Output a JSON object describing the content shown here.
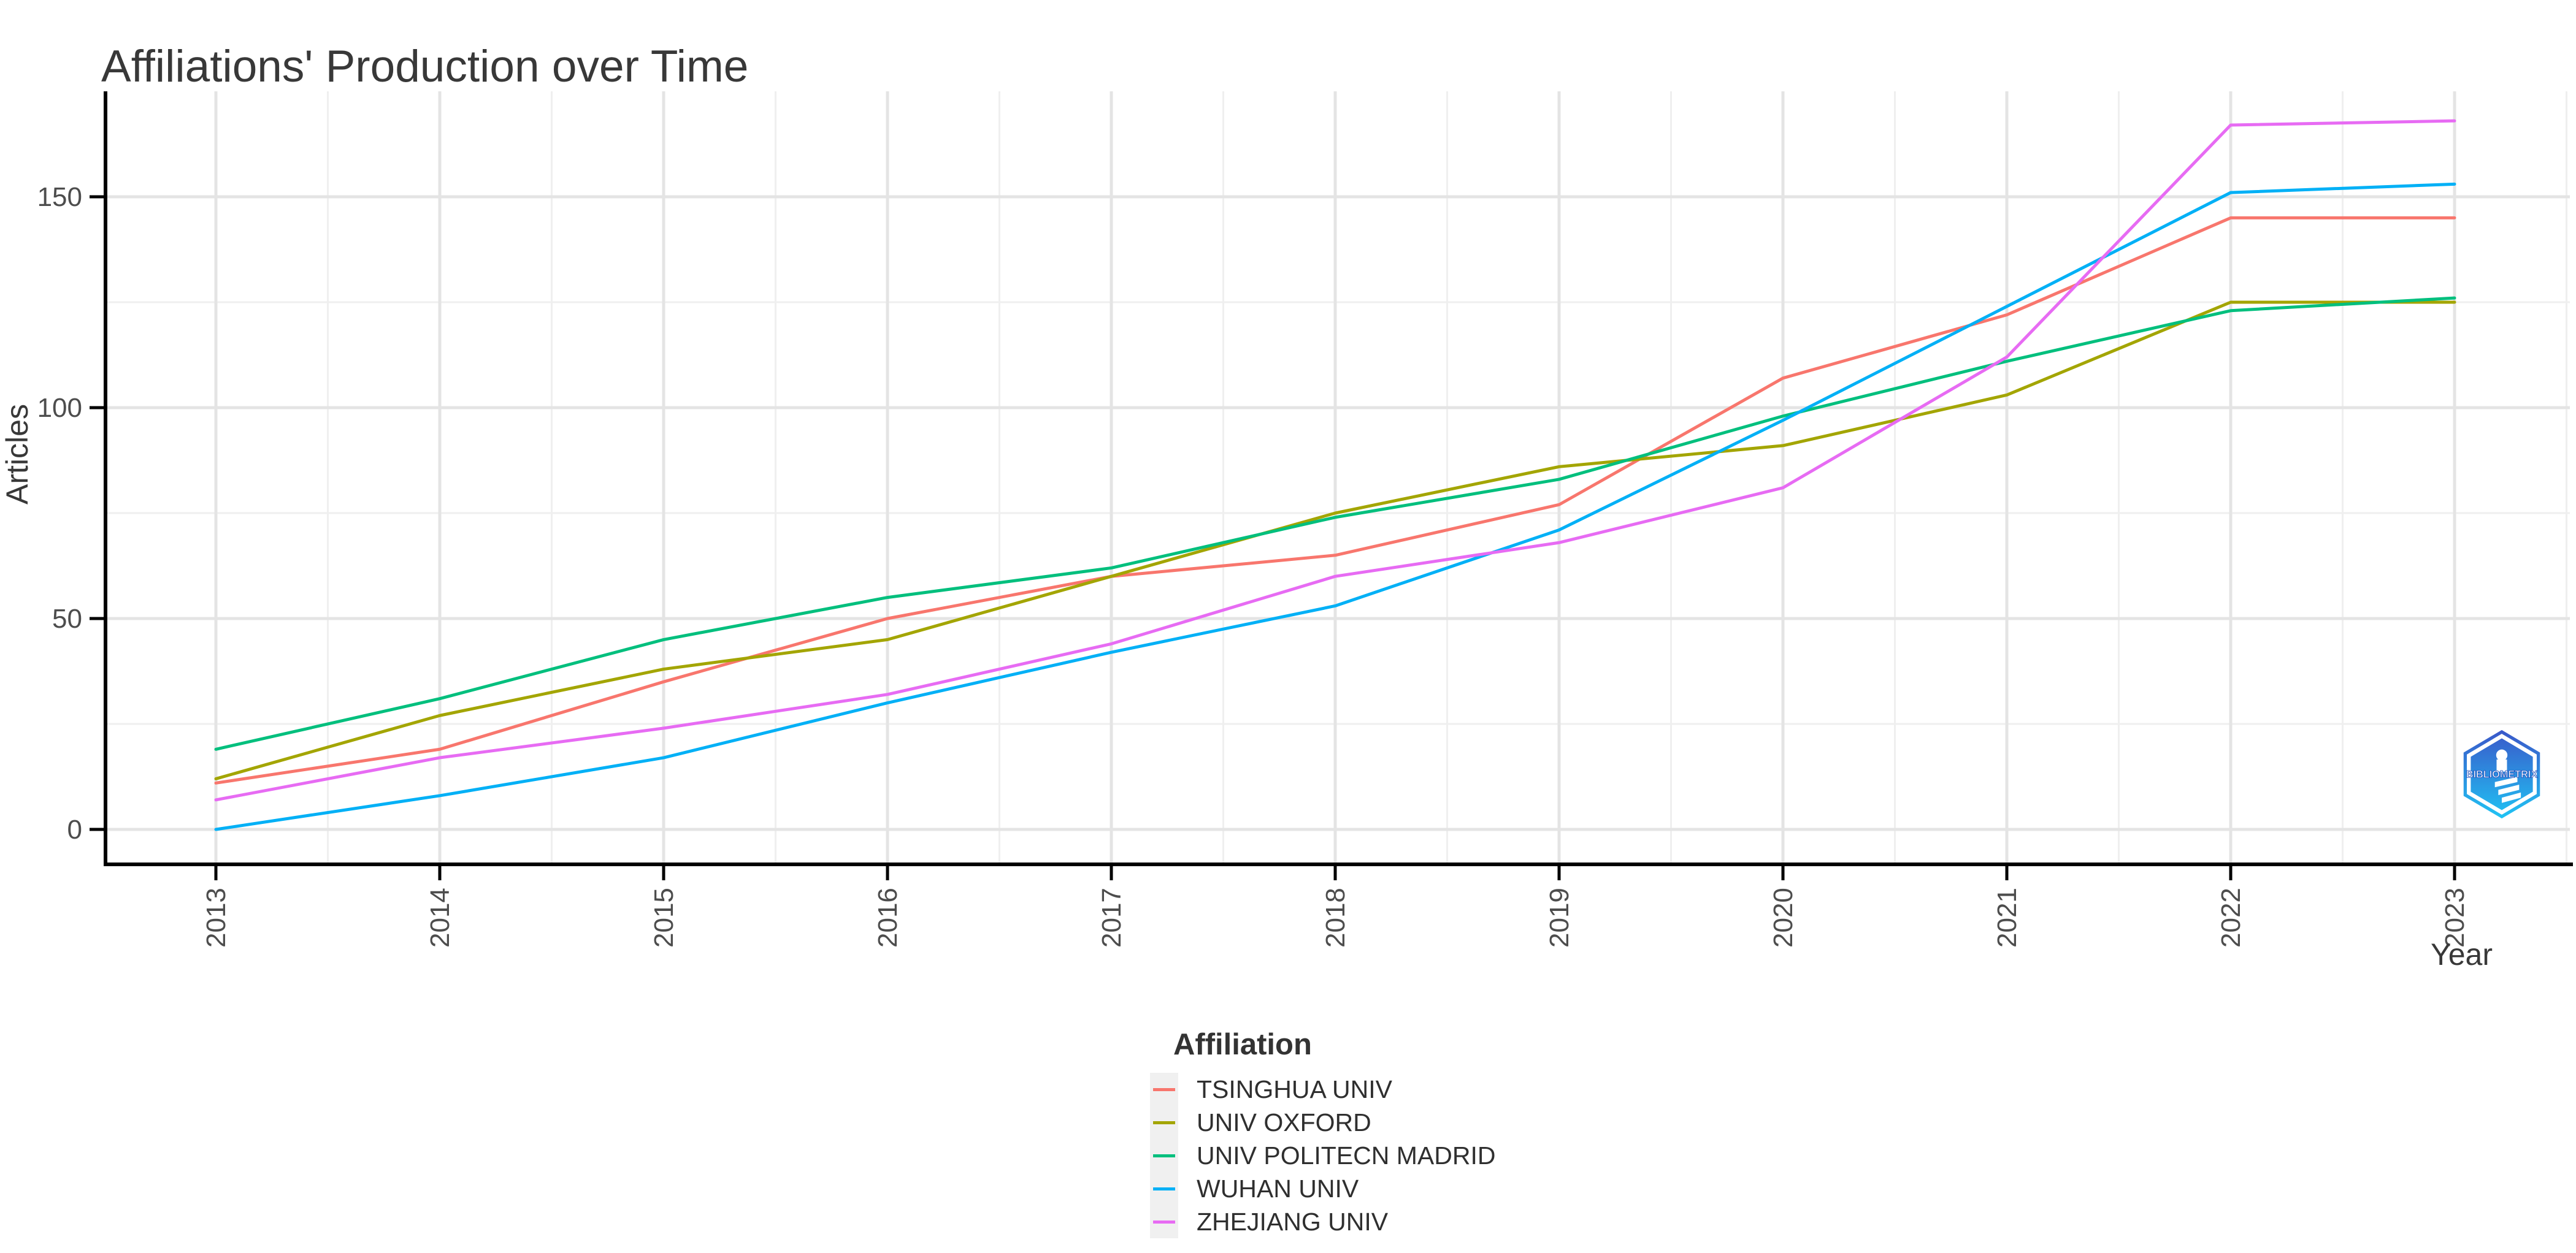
{
  "title": "Affiliations' Production over Time",
  "axes": {
    "x_label": "Year",
    "y_label": "Articles",
    "x_ticks": [
      "2013",
      "2014",
      "2015",
      "2016",
      "2017",
      "2018",
      "2019",
      "2020",
      "2021",
      "2022",
      "2023"
    ],
    "y_ticks": [
      "0",
      "50",
      "100",
      "150"
    ]
  },
  "legend": {
    "title": "Affiliation",
    "entries": [
      "TSINGHUA UNIV",
      "UNIV OXFORD",
      "UNIV POLITECN MADRID",
      "WUHAN UNIV",
      "ZHEJIANG UNIV"
    ]
  },
  "logo": {
    "text": "BIBLIOMETRIX"
  },
  "style_colors": {
    "axis_line": "#000000",
    "grid_major": "#E4E4E4",
    "grid_minor": "#EFEFEF",
    "tick_label": "#4D4D4D",
    "title_text": "#383838",
    "logo_top": "#3A57C9",
    "logo_bottom": "#20C4F4"
  },
  "chart_data": {
    "type": "line",
    "title": "Affiliations' Production over Time",
    "xlabel": "Year",
    "ylabel": "Articles",
    "x": [
      2013,
      2014,
      2015,
      2016,
      2017,
      2018,
      2019,
      2020,
      2021,
      2022,
      2023
    ],
    "ylim": [
      0,
      170
    ],
    "y_major_ticks": [
      0,
      50,
      100,
      150
    ],
    "y_minor_step": 25,
    "grid": true,
    "legend_title": "Affiliation",
    "legend_position": "bottom",
    "series": [
      {
        "name": "TSINGHUA UNIV",
        "color": "#F8766D",
        "values": [
          11,
          19,
          35,
          50,
          60,
          65,
          77,
          107,
          122,
          145,
          145
        ]
      },
      {
        "name": "UNIV OXFORD",
        "color": "#A3A500",
        "values": [
          12,
          27,
          38,
          45,
          60,
          75,
          86,
          91,
          103,
          125,
          125
        ]
      },
      {
        "name": "UNIV POLITECN MADRID",
        "color": "#00BF7D",
        "values": [
          19,
          31,
          45,
          55,
          62,
          74,
          83,
          98,
          111,
          123,
          126
        ]
      },
      {
        "name": "WUHAN UNIV",
        "color": "#00B0F6",
        "values": [
          0,
          8,
          17,
          30,
          42,
          53,
          71,
          97,
          124,
          151,
          153
        ]
      },
      {
        "name": "ZHEJIANG UNIV",
        "color": "#E76BF3",
        "values": [
          7,
          17,
          24,
          32,
          44,
          60,
          68,
          81,
          112,
          167,
          168
        ]
      }
    ]
  }
}
